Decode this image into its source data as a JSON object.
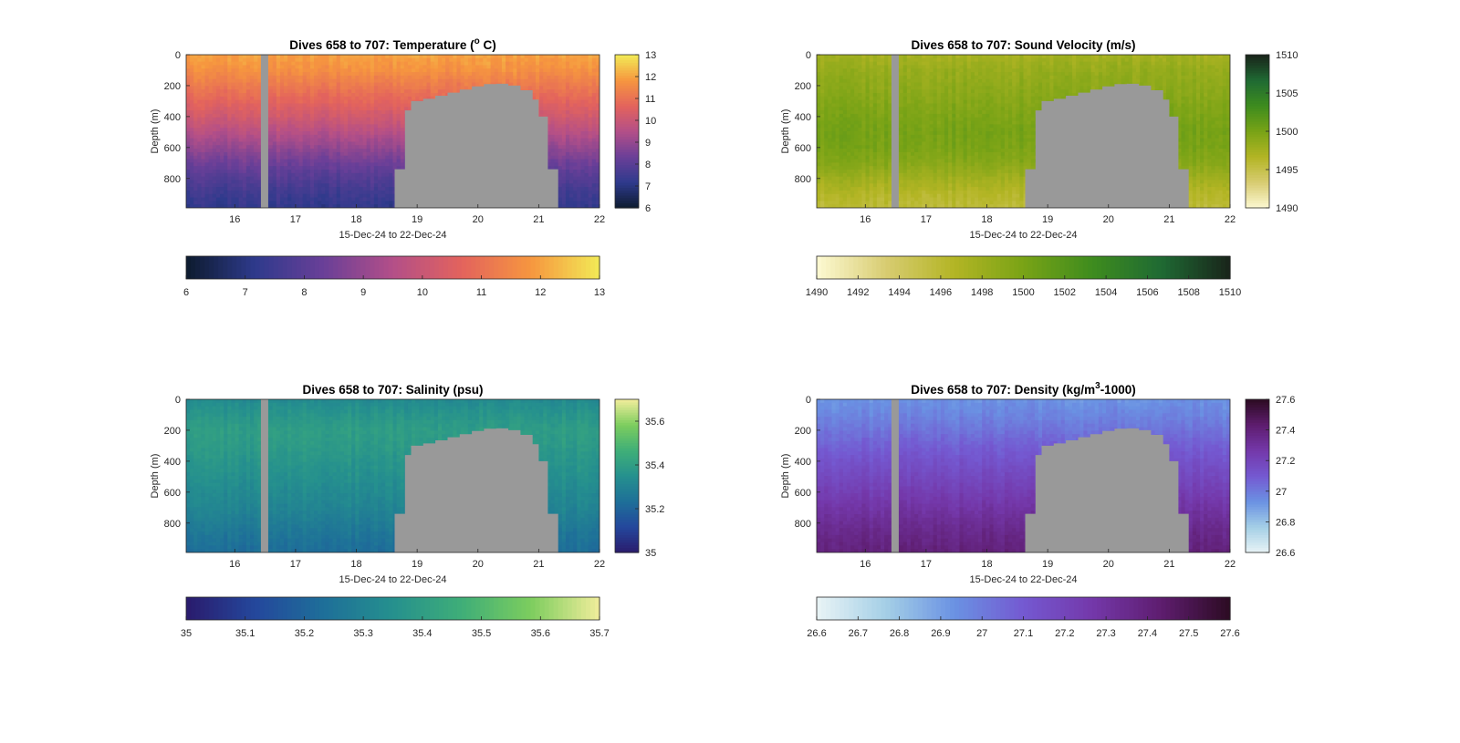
{
  "figure": {
    "x_range_label": "15-Dec-24 to 22-Dec-24",
    "missing_color": "#999999"
  },
  "chart_data": [
    {
      "type": "heatmap",
      "title_main": "Dives 658 to 707: Temperature (",
      "title_sup": "o",
      "title_tail": " C)",
      "xlabel": "15-Dec-24 to 22-Dec-24",
      "ylabel": "Depth (m)",
      "xlim": [
        15.2,
        22.0
      ],
      "ylim": [
        0,
        990
      ],
      "x_ticks": [
        16,
        17,
        18,
        19,
        20,
        21,
        22
      ],
      "x_tick_labels": [
        "16",
        "17",
        "18",
        "19",
        "20",
        "21",
        "22"
      ],
      "y_ticks": [
        0,
        200,
        400,
        600,
        800
      ],
      "y_tick_labels": [
        "0",
        "200",
        "400",
        "600",
        "800"
      ],
      "colormap": [
        "#0d1b2e",
        "#2e3a8c",
        "#6a3f98",
        "#b34f88",
        "#e3635d",
        "#f6963f",
        "#f2ea56"
      ],
      "clim": [
        6,
        13
      ],
      "side_colorbar_ticks": [
        6,
        7,
        8,
        9,
        10,
        11,
        12,
        13
      ],
      "side_colorbar_labels": [
        "6",
        "7",
        "8",
        "9",
        "10",
        "11",
        "12",
        "13"
      ],
      "bottom_colorbar_ticks": [
        6,
        7,
        8,
        9,
        10,
        11,
        12,
        13
      ],
      "bottom_colorbar_labels": [
        "6",
        "7",
        "8",
        "9",
        "10",
        "11",
        "12",
        "13"
      ],
      "profile_depths": [
        0,
        100,
        200,
        300,
        400,
        500,
        600,
        700,
        800,
        900,
        990
      ],
      "profile_values": [
        12.0,
        11.7,
        11.2,
        10.7,
        10.2,
        9.6,
        9.0,
        8.4,
        7.9,
        7.5,
        7.2
      ],
      "missing_column": [
        16.43,
        16.55
      ],
      "seafloor": [
        [
          18.63,
          740
        ],
        [
          18.8,
          360
        ],
        [
          18.9,
          300
        ],
        [
          19.1,
          285
        ],
        [
          19.3,
          265
        ],
        [
          19.5,
          245
        ],
        [
          19.7,
          225
        ],
        [
          19.9,
          205
        ],
        [
          20.1,
          190
        ],
        [
          20.3,
          188
        ],
        [
          20.5,
          200
        ],
        [
          20.7,
          230
        ],
        [
          20.9,
          290
        ],
        [
          21.0,
          400
        ],
        [
          21.15,
          740
        ]
      ],
      "seafloor_end": 21.32
    },
    {
      "type": "heatmap",
      "title_main": "Dives 658 to 707: Sound Velocity (m/s)",
      "title_sup": "",
      "title_tail": "",
      "xlabel": "15-Dec-24 to 22-Dec-24",
      "ylabel": "Depth (m)",
      "xlim": [
        15.2,
        22.0
      ],
      "ylim": [
        0,
        990
      ],
      "x_ticks": [
        16,
        17,
        18,
        19,
        20,
        21,
        22
      ],
      "x_tick_labels": [
        "16",
        "17",
        "18",
        "19",
        "20",
        "21",
        "22"
      ],
      "y_ticks": [
        0,
        200,
        400,
        600,
        800
      ],
      "y_tick_labels": [
        "0",
        "200",
        "400",
        "600",
        "800"
      ],
      "colormap": [
        "#fdf9d3",
        "#d8cc72",
        "#b3b524",
        "#79a316",
        "#3e8c1e",
        "#1f6a33",
        "#19241a"
      ],
      "clim": [
        1490,
        1510
      ],
      "side_colorbar_ticks": [
        1490,
        1495,
        1500,
        1505,
        1510
      ],
      "side_colorbar_labels": [
        "1490",
        "1495",
        "1500",
        "1505",
        "1510"
      ],
      "bottom_colorbar_ticks": [
        1490,
        1492,
        1494,
        1496,
        1498,
        1500,
        1502,
        1504,
        1506,
        1508,
        1510
      ],
      "bottom_colorbar_labels": [
        "1490",
        "1492",
        "1494",
        "1496",
        "1498",
        "1500",
        "1502",
        "1504",
        "1506",
        "1508",
        "1510"
      ],
      "profile_depths": [
        0,
        100,
        200,
        300,
        400,
        500,
        600,
        700,
        800,
        900,
        990
      ],
      "profile_values": [
        1497.5,
        1498.3,
        1498.8,
        1499.3,
        1499.8,
        1500.2,
        1500.0,
        1499.2,
        1497.8,
        1496.5,
        1495.8
      ],
      "missing_column": [
        16.43,
        16.55
      ],
      "seafloor": [
        [
          18.63,
          740
        ],
        [
          18.8,
          360
        ],
        [
          18.9,
          300
        ],
        [
          19.1,
          285
        ],
        [
          19.3,
          265
        ],
        [
          19.5,
          245
        ],
        [
          19.7,
          225
        ],
        [
          19.9,
          205
        ],
        [
          20.1,
          190
        ],
        [
          20.3,
          188
        ],
        [
          20.5,
          200
        ],
        [
          20.7,
          230
        ],
        [
          20.9,
          290
        ],
        [
          21.0,
          400
        ],
        [
          21.15,
          740
        ]
      ],
      "seafloor_end": 21.32
    },
    {
      "type": "heatmap",
      "title_main": "Dives 658 to 707: Salinity (psu)",
      "title_sup": "",
      "title_tail": "",
      "xlabel": "15-Dec-24 to 22-Dec-24",
      "ylabel": "Depth (m)",
      "xlim": [
        15.2,
        22.0
      ],
      "ylim": [
        0,
        990
      ],
      "x_ticks": [
        16,
        17,
        18,
        19,
        20,
        21,
        22
      ],
      "x_tick_labels": [
        "16",
        "17",
        "18",
        "19",
        "20",
        "21",
        "22"
      ],
      "y_ticks": [
        0,
        200,
        400,
        600,
        800
      ],
      "y_tick_labels": [
        "0",
        "200",
        "400",
        "600",
        "800"
      ],
      "colormap": [
        "#2a1b6c",
        "#24479c",
        "#1e6f99",
        "#25908e",
        "#3fae78",
        "#7ccd5e",
        "#f1ed9b"
      ],
      "clim": [
        35.0,
        35.7
      ],
      "side_colorbar_ticks": [
        35.0,
        35.2,
        35.4,
        35.6
      ],
      "side_colorbar_labels": [
        "35",
        "35.2",
        "35.4",
        "35.6"
      ],
      "bottom_colorbar_ticks": [
        35.0,
        35.1,
        35.2,
        35.3,
        35.4,
        35.5,
        35.6,
        35.7
      ],
      "bottom_colorbar_labels": [
        "35",
        "35.1",
        "35.2",
        "35.3",
        "35.4",
        "35.5",
        "35.6",
        "35.7"
      ],
      "profile_depths": [
        0,
        100,
        200,
        300,
        400,
        500,
        600,
        700,
        800,
        900,
        990
      ],
      "profile_values": [
        35.33,
        35.37,
        35.4,
        35.39,
        35.37,
        35.35,
        35.33,
        35.31,
        35.28,
        35.25,
        35.23
      ],
      "missing_column": [
        16.43,
        16.55
      ],
      "seafloor": [
        [
          18.63,
          740
        ],
        [
          18.8,
          360
        ],
        [
          18.9,
          300
        ],
        [
          19.1,
          285
        ],
        [
          19.3,
          265
        ],
        [
          19.5,
          245
        ],
        [
          19.7,
          225
        ],
        [
          19.9,
          205
        ],
        [
          20.1,
          190
        ],
        [
          20.3,
          188
        ],
        [
          20.5,
          200
        ],
        [
          20.7,
          230
        ],
        [
          20.9,
          290
        ],
        [
          21.0,
          400
        ],
        [
          21.15,
          740
        ]
      ],
      "seafloor_end": 21.32
    },
    {
      "type": "heatmap",
      "title_main": "Dives 658 to 707: Density (kg/m",
      "title_sup": "3",
      "title_tail": "-1000)",
      "xlabel": "15-Dec-24 to 22-Dec-24",
      "ylabel": "Depth (m)",
      "xlim": [
        15.2,
        22.0
      ],
      "ylim": [
        0,
        990
      ],
      "x_ticks": [
        16,
        17,
        18,
        19,
        20,
        21,
        22
      ],
      "x_tick_labels": [
        "16",
        "17",
        "18",
        "19",
        "20",
        "21",
        "22"
      ],
      "y_ticks": [
        0,
        200,
        400,
        600,
        800
      ],
      "y_tick_labels": [
        "0",
        "200",
        "400",
        "600",
        "800"
      ],
      "colormap": [
        "#e9f4f6",
        "#a5cfe6",
        "#6a92e3",
        "#7459d1",
        "#7438aa",
        "#5e1d6f",
        "#2c0b22"
      ],
      "clim": [
        26.6,
        27.6
      ],
      "side_colorbar_ticks": [
        26.6,
        26.8,
        27.0,
        27.2,
        27.4,
        27.6
      ],
      "side_colorbar_labels": [
        "26.6",
        "26.8",
        "27",
        "27.2",
        "27.4",
        "27.6"
      ],
      "bottom_colorbar_ticks": [
        26.6,
        26.7,
        26.8,
        26.9,
        27.0,
        27.1,
        27.2,
        27.3,
        27.4,
        27.5,
        27.6
      ],
      "bottom_colorbar_labels": [
        "26.6",
        "26.7",
        "26.8",
        "26.9",
        "27",
        "27.1",
        "27.2",
        "27.3",
        "27.4",
        "27.5",
        "27.6"
      ],
      "profile_depths": [
        0,
        100,
        200,
        300,
        400,
        500,
        600,
        700,
        800,
        900,
        990
      ],
      "profile_values": [
        26.93,
        26.97,
        27.02,
        27.08,
        27.13,
        27.18,
        27.23,
        27.28,
        27.33,
        27.37,
        27.4
      ],
      "missing_column": [
        16.43,
        16.55
      ],
      "seafloor": [
        [
          18.63,
          740
        ],
        [
          18.8,
          360
        ],
        [
          18.9,
          300
        ],
        [
          19.1,
          285
        ],
        [
          19.3,
          265
        ],
        [
          19.5,
          245
        ],
        [
          19.7,
          225
        ],
        [
          19.9,
          205
        ],
        [
          20.1,
          190
        ],
        [
          20.3,
          188
        ],
        [
          20.5,
          200
        ],
        [
          20.7,
          230
        ],
        [
          20.9,
          290
        ],
        [
          21.0,
          400
        ],
        [
          21.15,
          740
        ]
      ],
      "seafloor_end": 21.32
    }
  ]
}
